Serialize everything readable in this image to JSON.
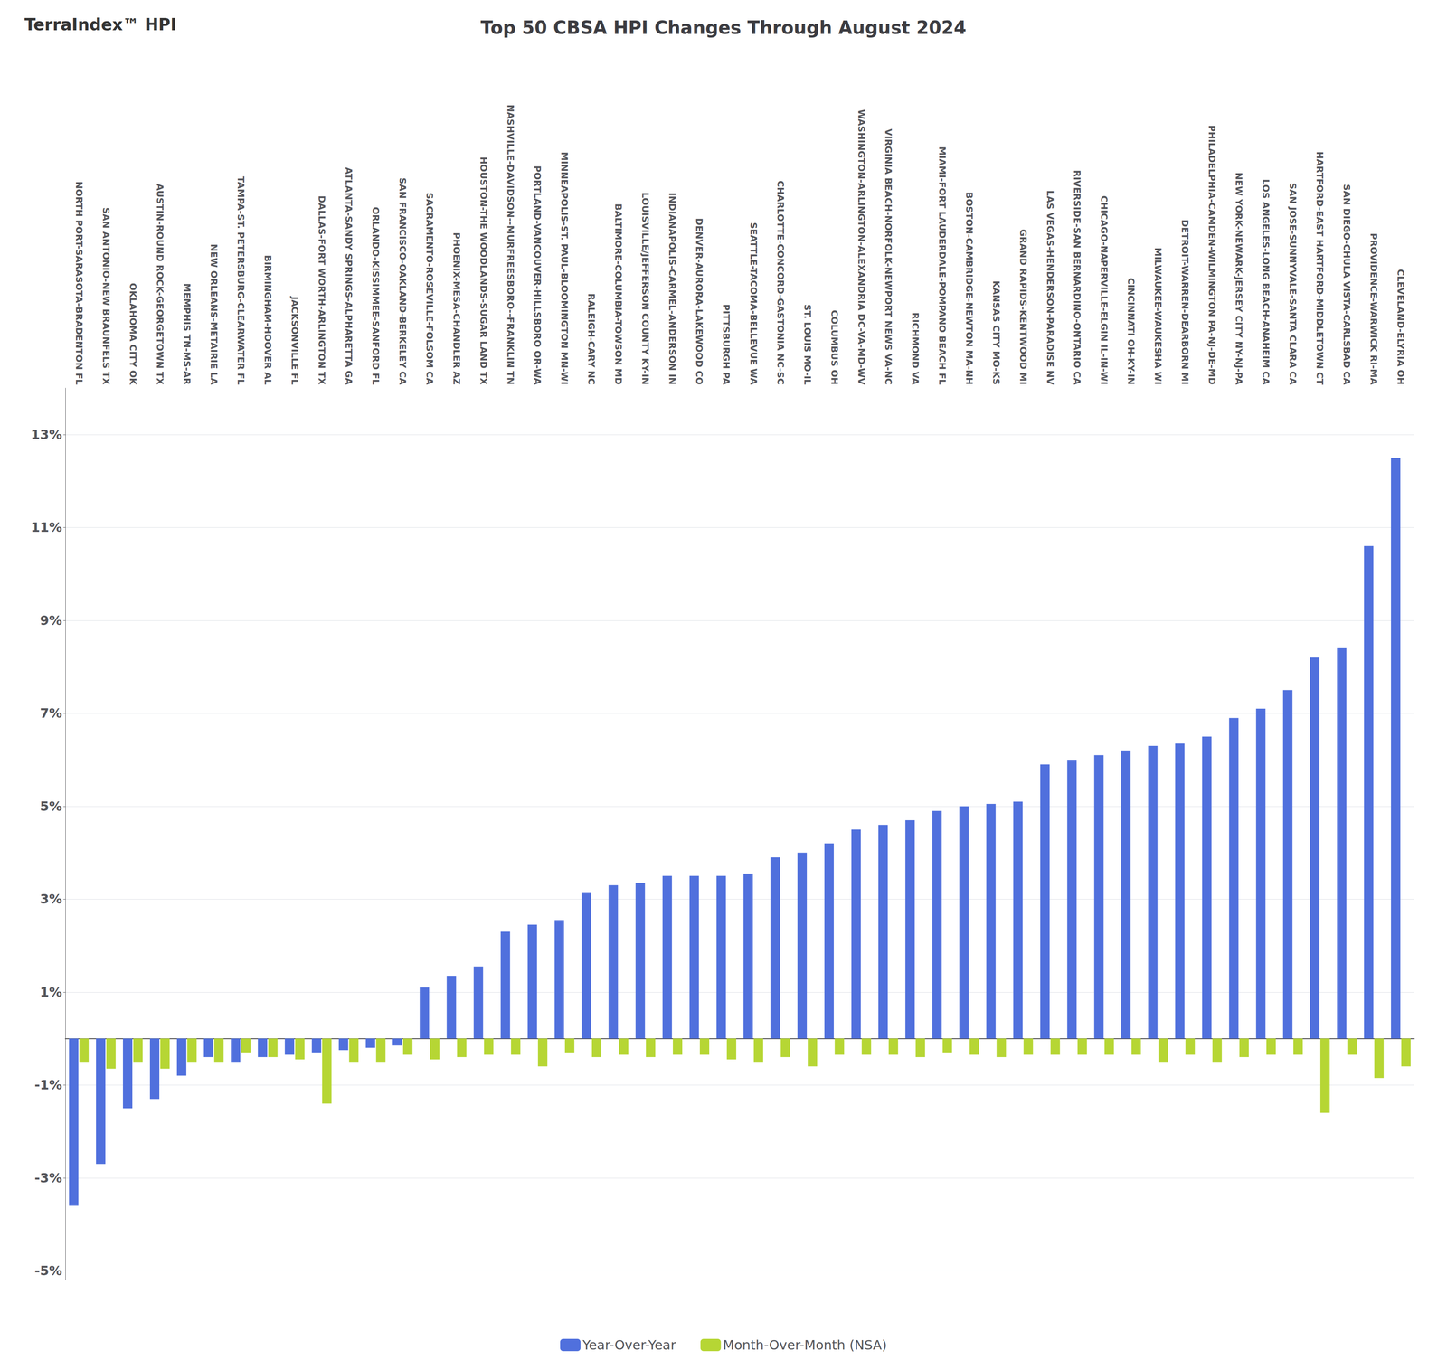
{
  "chart_data": {
    "type": "bar",
    "title": "Top 50 CBSA HPI Changes Through August 2024",
    "annotations": [
      "TerraIndex™ HPI"
    ],
    "categories": [
      "NORTH PORT-SARASOTA-BRADENTON FL",
      "SAN ANTONIO-NEW BRAUNFELS TX",
      "OKLAHOMA CITY OK",
      "AUSTIN-ROUND ROCK-GEORGETOWN TX",
      "MEMPHIS TN-MS-AR",
      "NEW ORLEANS-METAIRIE LA",
      "TAMPA-ST. PETERSBURG-CLEARWATER FL",
      "BIRMINGHAM-HOOVER AL",
      "JACKSONVILLE FL",
      "DALLAS-FORT WORTH-ARLINGTON TX",
      "ATLANTA-SANDY SPRINGS-ALPHARETTA GA",
      "ORLANDO-KISSIMMEE-SANFORD FL",
      "SAN FRANCISCO-OAKLAND-BERKELEY CA",
      "SACRAMENTO-ROSEVILLE-FOLSOM CA",
      "PHOENIX-MESA-CHANDLER AZ",
      "HOUSTON-THE WOODLANDS-SUGAR LAND TX",
      "NASHVILLE-DAVIDSON--MURFREESBORO--FRANKLIN TN",
      "PORTLAND-VANCOUVER-HILLSBORO OR-WA",
      "MINNEAPOLIS-ST. PAUL-BLOOMINGTON MN-WI",
      "RALEIGH-CARY NC",
      "BALTIMORE-COLUMBIA-TOWSON MD",
      "LOUISVILLE/JEFFERSON COUNTY KY-IN",
      "INDIANAPOLIS-CARMEL-ANDERSON IN",
      "DENVER-AURORA-LAKEWOOD CO",
      "PITTSBURGH PA",
      "SEATTLE-TACOMA-BELLEVUE WA",
      "CHARLOTTE-CONCORD-GASTONIA NC-SC",
      "ST. LOUIS MO-IL",
      "COLUMBUS OH",
      "WASHINGTON-ARLINGTON-ALEXANDRIA DC-VA-MD-WV",
      "VIRGINIA BEACH-NORFOLK-NEWPORT NEWS VA-NC",
      "RICHMOND VA",
      "MIAMI-FORT LAUDERDALE-POMPANO BEACH FL",
      "BOSTON-CAMBRIDGE-NEWTON MA-NH",
      "KANSAS CITY MO-KS",
      "GRAND RAPIDS-KENTWOOD MI",
      "LAS VEGAS-HENDERSON-PARADISE NV",
      "RIVERSIDE-SAN BERNARDINO-ONTARIO CA",
      "CHICAGO-NAPERVILLE-ELGIN IL-IN-WI",
      "CINCINNATI OH-KY-IN",
      "MILWAUKEE-WAUKESHA WI",
      "DETROIT-WARREN-DEARBORN MI",
      "PHILADELPHIA-CAMDEN-WILMINGTON PA-NJ-DE-MD",
      "NEW YORK-NEWARK-JERSEY CITY NY-NJ-PA",
      "LOS ANGELES-LONG BEACH-ANAHEIM CA",
      "SAN JOSE-SUNNYVALE-SANTA CLARA CA",
      "HARTFORD-EAST HARTFORD-MIDDLETOWN CT",
      "SAN DIEGO-CHULA VISTA-CARLSBAD CA",
      "PROVIDENCE-WARWICK RI-MA",
      "CLEVELAND-ELYRIA OH"
    ],
    "series": [
      {
        "name": "Year-Over-Year",
        "values": [
          -3.6,
          -2.7,
          -1.5,
          -1.3,
          -0.8,
          -0.4,
          -0.5,
          -0.4,
          -0.35,
          -0.3,
          -0.25,
          -0.2,
          -0.15,
          1.1,
          1.35,
          1.55,
          2.3,
          2.45,
          2.55,
          3.15,
          3.3,
          3.35,
          3.5,
          3.5,
          3.5,
          3.55,
          3.9,
          4.0,
          4.2,
          4.5,
          4.6,
          4.7,
          4.9,
          5.0,
          5.05,
          5.1,
          5.9,
          6.0,
          6.1,
          6.2,
          6.3,
          6.35,
          6.5,
          6.9,
          7.1,
          7.5,
          8.2,
          8.4,
          10.6,
          12.5
        ]
      },
      {
        "name": "Month-Over-Month (NSA)",
        "values": [
          -0.5,
          -0.65,
          -0.5,
          -0.65,
          -0.5,
          -0.5,
          -0.3,
          -0.4,
          -0.45,
          -1.4,
          -0.5,
          -0.5,
          -0.35,
          -0.45,
          -0.4,
          -0.35,
          -0.35,
          -0.6,
          -0.3,
          -0.4,
          -0.35,
          -0.4,
          -0.35,
          -0.35,
          -0.45,
          -0.5,
          -0.4,
          -0.6,
          -0.35,
          -0.35,
          -0.35,
          -0.4,
          -0.3,
          -0.35,
          -0.4,
          -0.35,
          -0.35,
          -0.35,
          -0.35,
          -0.35,
          -0.5,
          -0.35,
          -0.5,
          -0.4,
          -0.35,
          -0.35,
          -1.6,
          -0.35,
          -0.85,
          -0.6
        ]
      }
    ],
    "ylim": [
      -5.2,
      14.0
    ],
    "yticks": [
      {
        "value": -5,
        "label": "-5%"
      },
      {
        "value": -3,
        "label": "-3%"
      },
      {
        "value": -1,
        "label": "-1%"
      },
      {
        "value": 1,
        "label": "1%"
      },
      {
        "value": 3,
        "label": "3%"
      },
      {
        "value": 5,
        "label": "5%"
      },
      {
        "value": 7,
        "label": "7%"
      },
      {
        "value": 9,
        "label": "9%"
      },
      {
        "value": 11,
        "label": "11%"
      },
      {
        "value": 13,
        "label": "13%"
      }
    ],
    "grid": true,
    "legend": "bottom"
  }
}
